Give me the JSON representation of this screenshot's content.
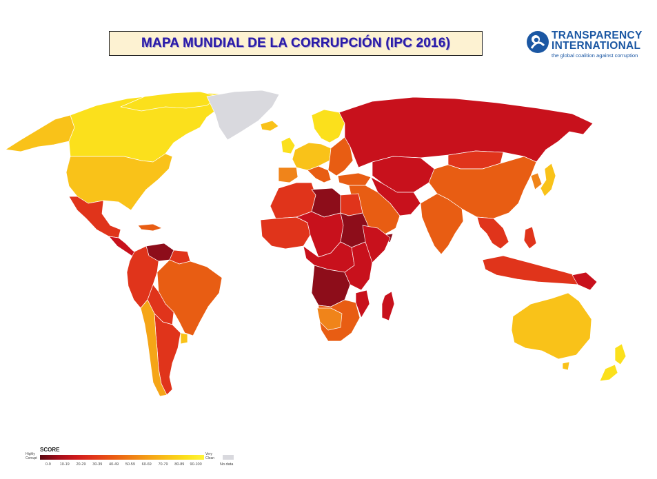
{
  "title": "MAPA MUNDIAL DE LA CORRUPCIÓN  (IPC 2016)",
  "logo": {
    "name_line1": "TRANSPARENCY",
    "name_line2": "INTERNATIONAL",
    "tagline": "the global coalition against corruption"
  },
  "legend": {
    "title": "SCORE",
    "low_label_1": "Highly",
    "low_label_2": "Corrupt",
    "high_label_1": "Very",
    "high_label_2": "Clean",
    "ticks": [
      "0-9",
      "10-19",
      "20-29",
      "30-39",
      "40-49",
      "50-59",
      "60-69",
      "70-79",
      "80-89",
      "90-100"
    ],
    "no_data_label": "No data"
  },
  "colors": {
    "title_text": "#2a1aa8",
    "title_bg": "#fdf2d2",
    "logo_blue": "#1b57a3",
    "band_0_9": "#5a0810",
    "band_10_19": "#8d0d1a",
    "band_20_29": "#c8111c",
    "band_30_39": "#e0341b",
    "band_40_49": "#e85d13",
    "band_50_59": "#f0841a",
    "band_60_69": "#f5a517",
    "band_70_79": "#f9c219",
    "band_80_89": "#fbe01c",
    "band_90_100": "#fff43a",
    "no_data": "#d9d9de"
  },
  "regions": [
    {
      "id": "canada",
      "score_band": "80-89"
    },
    {
      "id": "alaska",
      "score_band": "70-79"
    },
    {
      "id": "usa",
      "score_band": "70-79"
    },
    {
      "id": "mexico",
      "score_band": "30-39"
    },
    {
      "id": "central-america",
      "score_band": "20-29"
    },
    {
      "id": "venezuela",
      "score_band": "10-19"
    },
    {
      "id": "colombia-ecuador-peru",
      "score_band": "30-39"
    },
    {
      "id": "brazil",
      "score_band": "40-49"
    },
    {
      "id": "bolivia-paraguay",
      "score_band": "30-39"
    },
    {
      "id": "argentina",
      "score_band": "30-39"
    },
    {
      "id": "chile",
      "score_band": "60-69"
    },
    {
      "id": "uruguay",
      "score_band": "70-79"
    },
    {
      "id": "greenland",
      "score_band": "no data"
    },
    {
      "id": "iceland",
      "score_band": "70-79"
    },
    {
      "id": "western-europe",
      "score_band": "80-89"
    },
    {
      "id": "nordics",
      "score_band": "80-89"
    },
    {
      "id": "southern-europe",
      "score_band": "40-49"
    },
    {
      "id": "eastern-europe",
      "score_band": "40-49"
    },
    {
      "id": "russia",
      "score_band": "20-29"
    },
    {
      "id": "china",
      "score_band": "40-49"
    },
    {
      "id": "india",
      "score_band": "40-49"
    },
    {
      "id": "middle-east",
      "score_band": "40-49"
    },
    {
      "id": "central-asia",
      "score_band": "20-29"
    },
    {
      "id": "north-africa",
      "score_band": "30-39"
    },
    {
      "id": "libya",
      "score_band": "10-19"
    },
    {
      "id": "west-africa",
      "score_band": "30-39"
    },
    {
      "id": "sahel-central-africa",
      "score_band": "20-29"
    },
    {
      "id": "sudan",
      "score_band": "10-19"
    },
    {
      "id": "horn-of-africa",
      "score_band": "20-29"
    },
    {
      "id": "dr-congo",
      "score_band": "10-19"
    },
    {
      "id": "southern-africa",
      "score_band": "40-49"
    },
    {
      "id": "madagascar",
      "score_band": "20-29"
    },
    {
      "id": "southeast-asia",
      "score_band": "30-39"
    },
    {
      "id": "indonesia",
      "score_band": "30-39"
    },
    {
      "id": "japan",
      "score_band": "70-79"
    },
    {
      "id": "australia",
      "score_band": "70-79"
    },
    {
      "id": "new-zealand",
      "score_band": "80-89"
    },
    {
      "id": "papua-new-guinea",
      "score_band": "20-29"
    }
  ]
}
